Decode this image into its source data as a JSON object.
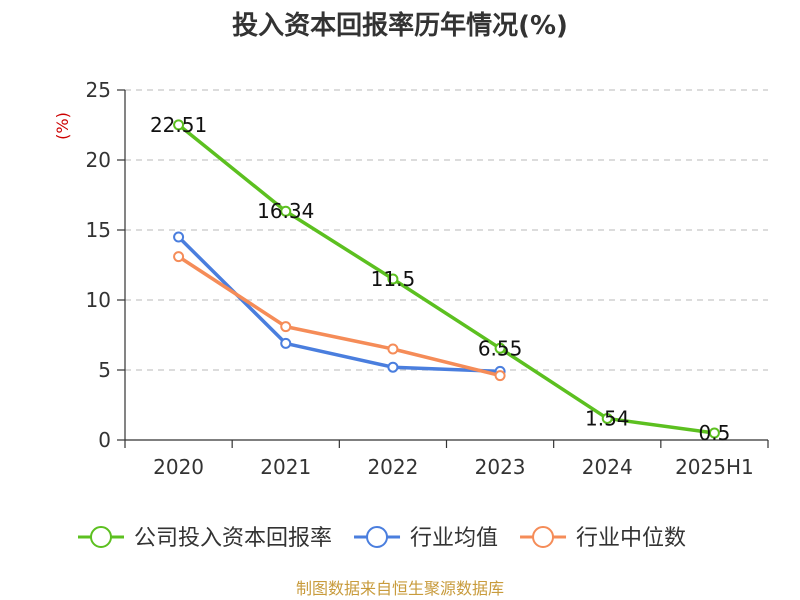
{
  "chart_data": {
    "type": "line",
    "title": "投入资本回报率历年情况(%)",
    "ylabel": "(%)",
    "xlabel": "",
    "categories": [
      "2020",
      "2021",
      "2022",
      "2023",
      "2024",
      "2025H1"
    ],
    "ylim": [
      0,
      25
    ],
    "yticks": [
      0,
      5,
      10,
      15,
      20,
      25
    ],
    "grid": "horizontal-dashed",
    "legend_position": "bottom",
    "series": [
      {
        "name": "公司投入资本回报率",
        "color": "#5cc020",
        "values": [
          22.51,
          16.34,
          11.5,
          6.55,
          1.54,
          0.5
        ],
        "data_labels": [
          "22.51",
          "16.34",
          "11.5",
          "6.55",
          "1.54",
          "0.5"
        ]
      },
      {
        "name": "行业均值",
        "color": "#4a7ede",
        "values": [
          14.5,
          6.9,
          5.2,
          4.9,
          null,
          null
        ]
      },
      {
        "name": "行业中位数",
        "color": "#f58c58",
        "values": [
          13.1,
          8.1,
          6.5,
          4.6,
          null,
          null
        ]
      }
    ]
  },
  "footer": {
    "source": "制图数据来自恒生聚源数据库"
  }
}
